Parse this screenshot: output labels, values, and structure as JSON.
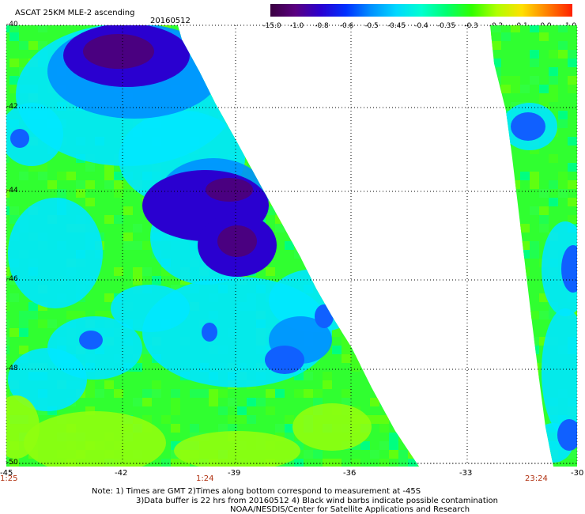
{
  "header": {
    "title": "ASCAT 25KM MLE-2 ascending",
    "date": "20160512"
  },
  "colorbar": {
    "labels": [
      "-15.0",
      "-1.0",
      "-0.8",
      "-0.6",
      "-0.5",
      "-0.45",
      "-0.4",
      "-0.35",
      "-0.3",
      "-0.2",
      "-0.1",
      "0.0",
      "1.0"
    ],
    "colors": [
      "#3a0040",
      "#5a0080",
      "#2a00d0",
      "#0030ff",
      "#0090ff",
      "#00d8ff",
      "#00ffd0",
      "#00ff70",
      "#30ff00",
      "#b0ff00",
      "#ffe000",
      "#ff8000",
      "#ff2000"
    ]
  },
  "map": {
    "lat_labels": [
      "-40",
      "-42",
      "-44",
      "-46",
      "-48",
      "-50"
    ],
    "lon_labels": [
      "-45",
      "-42",
      "-39",
      "-36",
      "-33",
      "-30"
    ],
    "time_labels": [
      "1:25",
      "1:24",
      "23:24"
    ]
  },
  "footer": {
    "note_line1": "Note: 1) Times are GMT 2)Times along bottom correspond to measurement at -45S",
    "note_line2": "3)Data buffer is 22 hrs from 20160512 4) Black wind barbs indicate possible contamination",
    "credit": "NOAA/NESDIS/Center for Satellite Applications and Research"
  },
  "theme": {
    "grid": "#000000",
    "time_label_color": "#b03010",
    "dominant_field": "#30ff30",
    "low_value": "#2a00d0"
  }
}
